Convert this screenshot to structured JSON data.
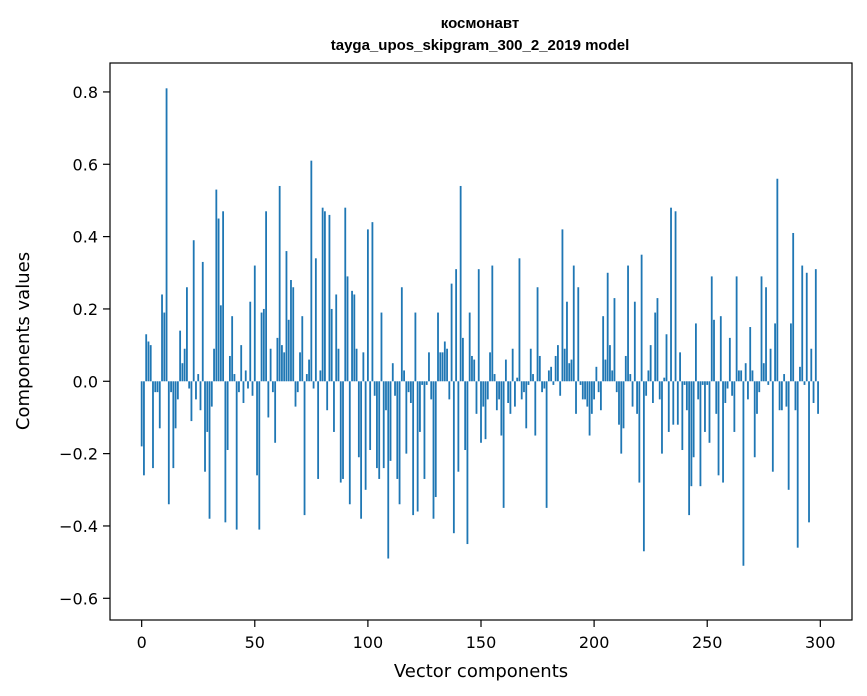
{
  "chart_data": {
    "type": "bar",
    "title": "космонавт",
    "subtitle": "tayga_upos_skipgram_300_2_2019 model",
    "xlabel": "Vector components",
    "ylabel": "Components values",
    "xlim": [
      -14,
      314
    ],
    "ylim": [
      -0.66,
      0.88
    ],
    "xticks": [
      0,
      50,
      100,
      150,
      200,
      250,
      300
    ],
    "xtick_labels": [
      "0",
      "50",
      "100",
      "150",
      "200",
      "250",
      "300"
    ],
    "yticks": [
      -0.6,
      -0.4,
      -0.2,
      0.0,
      0.2,
      0.4,
      0.6,
      0.8
    ],
    "ytick_labels": [
      "−0.6",
      "−0.4",
      "−0.2",
      "0.0",
      "0.2",
      "0.4",
      "0.6",
      "0.8"
    ],
    "grid": false,
    "bar_color": "#1f77b4",
    "values": [
      -0.18,
      -0.26,
      0.13,
      0.11,
      0.1,
      -0.24,
      -0.03,
      -0.03,
      -0.13,
      0.24,
      0.19,
      0.81,
      -0.34,
      -0.03,
      -0.24,
      -0.13,
      -0.05,
      0.14,
      0.05,
      0.09,
      0.26,
      -0.02,
      -0.11,
      0.39,
      -0.05,
      0.02,
      -0.08,
      0.33,
      -0.25,
      -0.14,
      -0.38,
      -0.07,
      0.09,
      0.53,
      0.45,
      0.21,
      0.47,
      -0.39,
      -0.19,
      0.07,
      0.18,
      0.02,
      -0.41,
      -0.03,
      0.1,
      -0.06,
      0.03,
      -0.02,
      0.22,
      -0.04,
      0.32,
      -0.26,
      -0.41,
      0.19,
      0.2,
      0.47,
      -0.1,
      0.09,
      -0.03,
      -0.17,
      0.12,
      0.54,
      0.1,
      0.08,
      0.36,
      0.17,
      0.28,
      0.26,
      -0.07,
      -0.03,
      0.08,
      0.18,
      -0.37,
      0.02,
      0.06,
      0.61,
      -0.02,
      0.34,
      -0.27,
      0.03,
      0.48,
      0.47,
      -0.08,
      0.46,
      0.2,
      -0.14,
      0.24,
      0.09,
      -0.28,
      -0.27,
      0.48,
      0.29,
      -0.34,
      0.25,
      0.24,
      0.09,
      -0.21,
      -0.38,
      0.08,
      -0.3,
      0.42,
      -0.19,
      0.44,
      -0.04,
      -0.24,
      -0.27,
      0.19,
      -0.24,
      -0.08,
      -0.49,
      -0.22,
      0.05,
      -0.04,
      -0.27,
      -0.34,
      0.26,
      0.03,
      -0.2,
      -0.03,
      -0.06,
      -0.37,
      0.19,
      -0.36,
      -0.14,
      -0.01,
      -0.27,
      -0.01,
      0.08,
      -0.05,
      -0.38,
      -0.32,
      0.19,
      0.08,
      0.08,
      0.11,
      0.09,
      -0.05,
      0.27,
      -0.42,
      0.31,
      -0.25,
      0.54,
      0.12,
      -0.19,
      -0.45,
      0.19,
      0.07,
      0.06,
      -0.09,
      0.31,
      -0.17,
      -0.07,
      -0.16,
      -0.05,
      0.08,
      0.32,
      0.02,
      -0.08,
      -0.05,
      -0.15,
      -0.35,
      0.06,
      -0.06,
      -0.09,
      0.09,
      -0.07,
      0.01,
      0.34,
      -0.05,
      -0.03,
      -0.13,
      -0.01,
      0.09,
      0.02,
      -0.15,
      0.26,
      0.07,
      -0.03,
      -0.02,
      -0.35,
      0.03,
      0.04,
      -0.01,
      0.07,
      0.1,
      -0.04,
      0.42,
      0.09,
      0.22,
      0.05,
      0.06,
      0.32,
      -0.09,
      0.26,
      -0.01,
      -0.05,
      -0.05,
      -0.07,
      -0.15,
      -0.09,
      -0.05,
      0.04,
      -0.03,
      -0.08,
      0.18,
      0.06,
      0.3,
      0.1,
      0.03,
      0.23,
      -0.03,
      -0.12,
      -0.2,
      -0.13,
      0.07,
      0.32,
      0.02,
      -0.07,
      0.22,
      -0.09,
      -0.28,
      0.35,
      -0.47,
      -0.04,
      0.03,
      0.1,
      -0.06,
      0.19,
      0.23,
      -0.05,
      -0.2,
      0.01,
      0.13,
      -0.14,
      0.48,
      -0.12,
      0.47,
      -0.12,
      0.08,
      -0.19,
      -0.01,
      -0.08,
      -0.37,
      -0.29,
      -0.21,
      0.16,
      -0.05,
      -0.29,
      -0.01,
      -0.14,
      -0.01,
      -0.17,
      0.29,
      0.17,
      -0.09,
      -0.26,
      0.18,
      -0.28,
      -0.06,
      -0.02,
      0.12,
      -0.04,
      -0.14,
      0.29,
      0.03,
      0.03,
      -0.51,
      0.05,
      -0.05,
      0.15,
      0.03,
      -0.21,
      -0.09,
      -0.03,
      0.29,
      0.05,
      0.26,
      -0.01,
      0.09,
      -0.25,
      0.16,
      0.56,
      -0.08,
      -0.08,
      0.02,
      -0.07,
      -0.3,
      0.16,
      0.41,
      -0.08,
      -0.46,
      0.04,
      0.32,
      -0.01,
      0.3,
      -0.39,
      0.09,
      -0.06,
      0.31,
      -0.09
    ]
  }
}
